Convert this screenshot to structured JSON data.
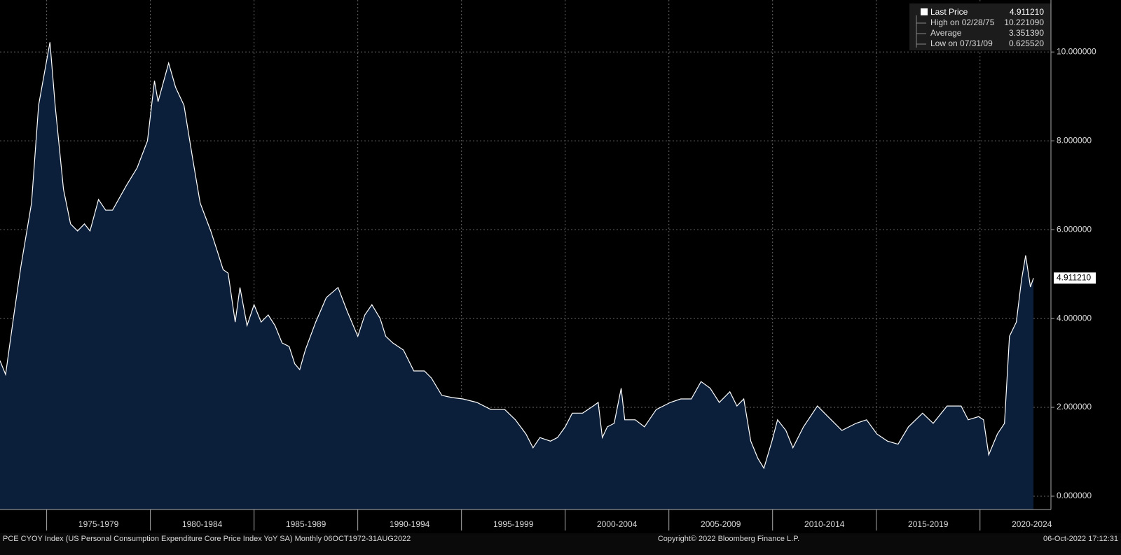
{
  "chart_data": {
    "type": "area",
    "series": [
      {
        "name": "Last Price",
        "color": "#ffffff",
        "fill": "#0b1f3b",
        "values": [
          3.05,
          2.74,
          4.08,
          5.18,
          6.6,
          8.8,
          10.22,
          8.8,
          6.91,
          6.13,
          5.97,
          6.13,
          5.97,
          6.68,
          6.44,
          6.44,
          7.0,
          7.39,
          8.0,
          9.35,
          8.88,
          9.75,
          9.2,
          8.8,
          7.54,
          6.6,
          5.97,
          5.5,
          5.1,
          5.02,
          3.92,
          4.7,
          3.84,
          4.31,
          3.92,
          4.08,
          3.84,
          3.45,
          3.37,
          2.98,
          2.85,
          3.29,
          3.92,
          4.47,
          4.7,
          4.16,
          3.6,
          4.08,
          4.31,
          4.0,
          3.6,
          3.45,
          3.29,
          2.82,
          2.82,
          2.66,
          2.27,
          2.22,
          2.19,
          2.11,
          1.95,
          1.95,
          1.72,
          1.4,
          1.09,
          1.32,
          1.24,
          1.32,
          1.56,
          1.87,
          1.87,
          2.03,
          2.11,
          1.32,
          1.56,
          1.64,
          2.43,
          1.72,
          1.72,
          1.56,
          1.95,
          2.11,
          2.19,
          2.19,
          2.58,
          2.43,
          2.11,
          2.35,
          2.03,
          2.19,
          1.24,
          0.85,
          0.63,
          1.24,
          1.72,
          1.48,
          1.09,
          1.56,
          2.03,
          1.79,
          1.48,
          1.64,
          1.72,
          1.4,
          1.24,
          1.17,
          1.56,
          1.87,
          1.64,
          2.03,
          2.03,
          1.72,
          1.79,
          1.72,
          0.93,
          1.4,
          1.64,
          3.6,
          3.92,
          4.87,
          5.42,
          4.71,
          4.91
        ]
      }
    ],
    "x": [
      1972.75,
      1973.02,
      1973.42,
      1973.76,
      1974.27,
      1974.61,
      1975.16,
      1975.41,
      1975.81,
      1976.15,
      1976.49,
      1976.82,
      1977.09,
      1977.5,
      1977.84,
      1978.18,
      1978.85,
      1979.36,
      1979.86,
      1980.2,
      1980.37,
      1980.88,
      1981.22,
      1981.62,
      1982.06,
      1982.4,
      1982.91,
      1983.24,
      1983.51,
      1983.75,
      1984.09,
      1984.32,
      1984.66,
      1985.0,
      1985.34,
      1985.68,
      1986.01,
      1986.35,
      1986.69,
      1986.96,
      1987.2,
      1987.47,
      1987.97,
      1988.48,
      1989.05,
      1989.49,
      1990.0,
      1990.34,
      1990.68,
      1991.08,
      1991.35,
      1991.69,
      1992.2,
      1992.7,
      1993.21,
      1993.55,
      1994.05,
      1994.56,
      1995.07,
      1995.74,
      1996.42,
      1997.09,
      1997.6,
      1998.11,
      1998.45,
      1998.78,
      1999.29,
      1999.63,
      2000.0,
      2000.34,
      2000.84,
      2001.35,
      2001.59,
      2001.79,
      2002.03,
      2002.36,
      2002.7,
      2002.87,
      2003.38,
      2003.82,
      2004.39,
      2005.07,
      2005.57,
      2006.08,
      2006.55,
      2006.99,
      2007.43,
      2007.94,
      2008.28,
      2008.61,
      2008.95,
      2009.29,
      2009.58,
      2009.97,
      2010.24,
      2010.64,
      2010.98,
      2011.49,
      2012.16,
      2012.67,
      2013.34,
      2014.02,
      2014.53,
      2015.03,
      2015.54,
      2016.05,
      2016.55,
      2017.23,
      2017.74,
      2018.41,
      2019.09,
      2019.43,
      2019.93,
      2020.17,
      2020.42,
      2020.84,
      2021.18,
      2021.42,
      2021.75,
      2022.0,
      2022.2,
      2022.43,
      2022.58
    ],
    "xlim": [
      1972.75,
      2023.42
    ],
    "xticks": [
      {
        "value": 1975,
        "label": "1975-1979"
      },
      {
        "value": 1980,
        "label": "1980-1984"
      },
      {
        "value": 1985,
        "label": "1985-1989"
      },
      {
        "value": 1990,
        "label": "1990-1994"
      },
      {
        "value": 1995,
        "label": "1995-1999"
      },
      {
        "value": 2000,
        "label": "2000-2004"
      },
      {
        "value": 2005,
        "label": "2005-2009"
      },
      {
        "value": 2010,
        "label": "2010-2014"
      },
      {
        "value": 2015,
        "label": "2015-2019"
      },
      {
        "value": 2020,
        "label": "2020-2024"
      }
    ],
    "ylim": [
      -0.3,
      11.17
    ],
    "yticks": [
      {
        "value": 0,
        "label": "0.000000"
      },
      {
        "value": 2,
        "label": "2.000000"
      },
      {
        "value": 4,
        "label": "4.000000"
      },
      {
        "value": 6,
        "label": "6.000000"
      },
      {
        "value": 8,
        "label": "8.000000"
      },
      {
        "value": 10,
        "label": "10.000000"
      }
    ],
    "grid": true,
    "last_value": "4.911210",
    "legend_stats": [
      {
        "label": "High on 02/28/75",
        "value": "10.221090"
      },
      {
        "label": "Average",
        "value": "3.351390"
      },
      {
        "label": "Low on 07/31/09",
        "value": "0.625520"
      }
    ],
    "footer": {
      "left": "PCE CYOY Index (US Personal Consumption Expenditure Core Price Index YoY SA)  Monthly 06OCT1972-31AUG2022",
      "center": "Copyright© 2022 Bloomberg Finance L.P.",
      "right": "06-Oct-2022 17:12:31"
    }
  }
}
